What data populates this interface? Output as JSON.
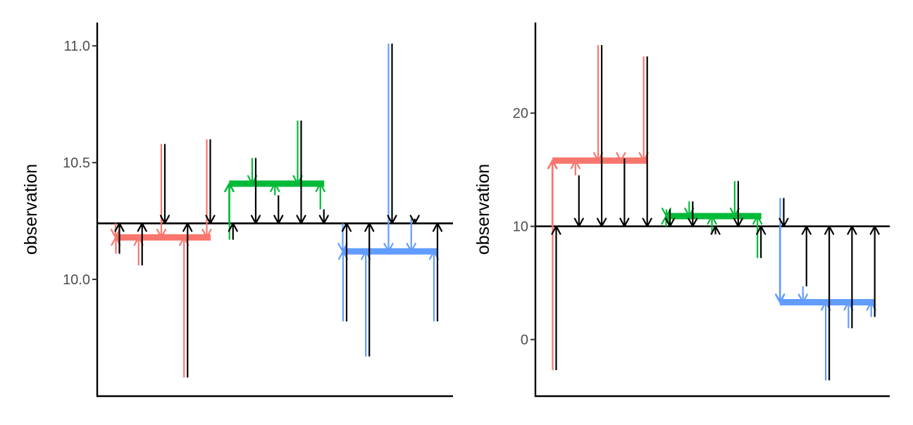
{
  "chart_data": [
    {
      "type": "arrow-deviation",
      "ylabel": "observation",
      "ylim": [
        9.5,
        11.1
      ],
      "yticks": [
        10.0,
        10.5,
        11.0
      ],
      "ytick_labels": [
        "10.0",
        "10.5",
        "11.0"
      ],
      "grand_mean": 10.24,
      "groups": [
        {
          "color": "#F8766D",
          "mean": 10.18,
          "observations": [
            10.11,
            10.06,
            10.58,
            9.58,
            10.6
          ]
        },
        {
          "color": "#00BA38",
          "mean": 10.41,
          "observations": [
            10.17,
            10.52,
            10.36,
            10.68,
            10.3
          ]
        },
        {
          "color": "#619CFF",
          "mean": 10.12,
          "observations": [
            9.82,
            9.67,
            11.01,
            10.26,
            9.82
          ]
        }
      ]
    },
    {
      "type": "arrow-deviation",
      "ylabel": "observation",
      "ylim": [
        -5,
        28
      ],
      "yticks": [
        0,
        10,
        20
      ],
      "ytick_labels": [
        "0",
        "10",
        "20"
      ],
      "grand_mean": 10,
      "groups": [
        {
          "color": "#F8766D",
          "mean": 15.8,
          "observations": [
            -2.7,
            14.5,
            26.0,
            16.0,
            25.0
          ]
        },
        {
          "color": "#00BA38",
          "mean": 10.9,
          "observations": [
            11.5,
            12.2,
            9.3,
            14.0,
            7.2
          ]
        },
        {
          "color": "#619CFF",
          "mean": 3.3,
          "observations": [
            12.5,
            4.7,
            -3.6,
            1.0,
            2.0
          ]
        }
      ]
    }
  ]
}
